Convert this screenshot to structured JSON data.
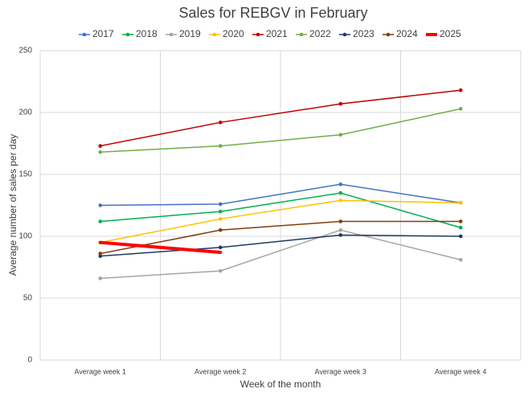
{
  "chart_data": {
    "type": "line",
    "title": "Sales for REBGV in February",
    "x_label": "Week of the month",
    "y_label": "Average number of sales per day",
    "categories": [
      "Average week 1",
      "Average week 2",
      "Average week 3",
      "Average week 4"
    ],
    "series": [
      {
        "name": "2017",
        "color": "#4472c4",
        "values": [
          125,
          126,
          142,
          127
        ]
      },
      {
        "name": "2018",
        "color": "#00b050",
        "values": [
          112,
          120,
          135,
          107
        ]
      },
      {
        "name": "2019",
        "color": "#a5a5a5",
        "values": [
          66,
          72,
          105,
          81
        ]
      },
      {
        "name": "2020",
        "color": "#ffc000",
        "values": [
          95,
          114,
          129,
          127
        ]
      },
      {
        "name": "2021",
        "color": "#c00000",
        "values": [
          173,
          192,
          207,
          218
        ]
      },
      {
        "name": "2022",
        "color": "#70ad47",
        "values": [
          168,
          173,
          182,
          203
        ]
      },
      {
        "name": "2023",
        "color": "#1f3864",
        "values": [
          84,
          91,
          101,
          100
        ]
      },
      {
        "name": "2024",
        "color": "#843c0c",
        "values": [
          86,
          105,
          112,
          112
        ]
      },
      {
        "name": "2025",
        "color": "#ff0000",
        "values": [
          95,
          87,
          null,
          null
        ],
        "line_width": 4,
        "markers": false
      }
    ],
    "ylim": [
      0,
      250
    ],
    "yticks": [
      0,
      50,
      100,
      150,
      200,
      250
    ],
    "grid": true,
    "legend": "top"
  }
}
